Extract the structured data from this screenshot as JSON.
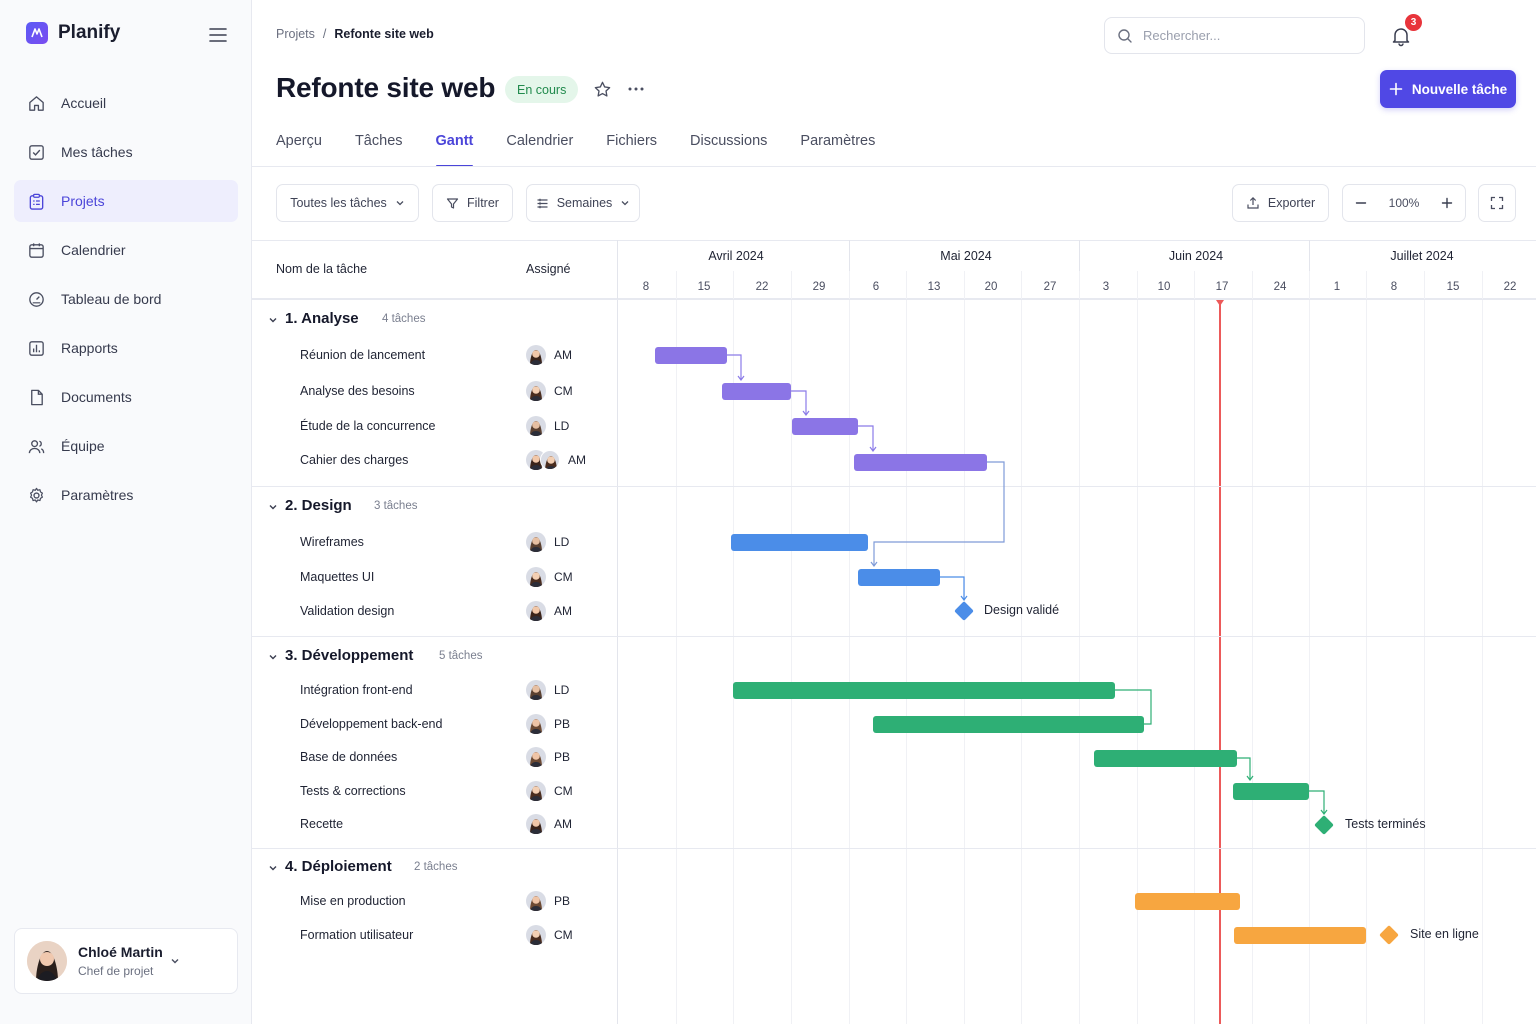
{
  "app": {
    "name": "Planify"
  },
  "sidebar": {
    "items": [
      {
        "label": "Accueil",
        "icon": "home-icon"
      },
      {
        "label": "Mes tâches",
        "icon": "checkbox-icon"
      },
      {
        "label": "Projets",
        "icon": "clipboard-icon",
        "active": true
      },
      {
        "label": "Calendrier",
        "icon": "calendar-icon"
      },
      {
        "label": "Tableau de bord",
        "icon": "gauge-icon"
      },
      {
        "label": "Rapports",
        "icon": "chart-icon"
      },
      {
        "label": "Documents",
        "icon": "document-icon"
      },
      {
        "label": "Équipe",
        "icon": "team-icon"
      },
      {
        "label": "Paramètres",
        "icon": "gear-icon"
      }
    ],
    "user": {
      "name": "Chloé Martin",
      "role": "Chef de projet"
    }
  },
  "header": {
    "breadcrumb": [
      "Projets",
      "Refonte site web"
    ],
    "search_placeholder": "Rechercher...",
    "notifications": "3",
    "title": "Refonte site web",
    "status": "En cours",
    "new_task_label": "Nouvelle tâche"
  },
  "tabs": [
    {
      "label": "Aperçu"
    },
    {
      "label": "Tâches"
    },
    {
      "label": "Gantt",
      "active": true
    },
    {
      "label": "Calendrier"
    },
    {
      "label": "Fichiers"
    },
    {
      "label": "Discussions"
    },
    {
      "label": "Paramètres"
    }
  ],
  "toolbar": {
    "filter_all": "Toutes les tâches",
    "filter": "Filtrer",
    "scale": "Semaines",
    "export": "Exporter",
    "zoom": "100%"
  },
  "table": {
    "col_task": "Nom de la tâche",
    "col_assignee": "Assigné"
  },
  "timeline": {
    "months": [
      "Avril 2024",
      "Mai 2024",
      "Juin 2024",
      "Juillet 2024"
    ],
    "weeks": [
      "8",
      "15",
      "22",
      "29",
      "6",
      "13",
      "20",
      "27",
      "3",
      "10",
      "17",
      "24",
      "1",
      "8",
      "15",
      "22"
    ],
    "today": "17 Juin 2024"
  },
  "groups": [
    {
      "title": "1. Analyse",
      "count": "4 tâches",
      "color": "#8b75e6",
      "tasks": [
        {
          "name": "Réunion de lancement",
          "assignee": "AM"
        },
        {
          "name": "Analyse des besoins",
          "assignee": "CM"
        },
        {
          "name": "Étude de la concurrence",
          "assignee": "LD"
        },
        {
          "name": "Cahier des charges",
          "assignee": "AM"
        }
      ]
    },
    {
      "title": "2. Design",
      "count": "3 tâches",
      "color": "#4b8de8",
      "tasks": [
        {
          "name": "Wireframes",
          "assignee": "LD"
        },
        {
          "name": "Maquettes UI",
          "assignee": "CM"
        },
        {
          "name": "Validation design",
          "assignee": "AM"
        }
      ],
      "milestone": "Design validé"
    },
    {
      "title": "3. Développement",
      "count": "5 tâches",
      "color": "#2eaf75",
      "tasks": [
        {
          "name": "Intégration front-end",
          "assignee": "LD"
        },
        {
          "name": "Développement back-end",
          "assignee": "PB"
        },
        {
          "name": "Base de données",
          "assignee": "PB"
        },
        {
          "name": "Tests & corrections",
          "assignee": "CM"
        },
        {
          "name": "Recette",
          "assignee": "AM"
        }
      ],
      "milestone": "Tests terminés"
    },
    {
      "title": "4. Déploiement",
      "count": "2 tâches",
      "color": "#f7a640",
      "tasks": [
        {
          "name": "Mise en production",
          "assignee": "PB"
        },
        {
          "name": "Formation utilisateur",
          "assignee": "CM"
        }
      ],
      "milestone": "Site en ligne"
    }
  ]
}
